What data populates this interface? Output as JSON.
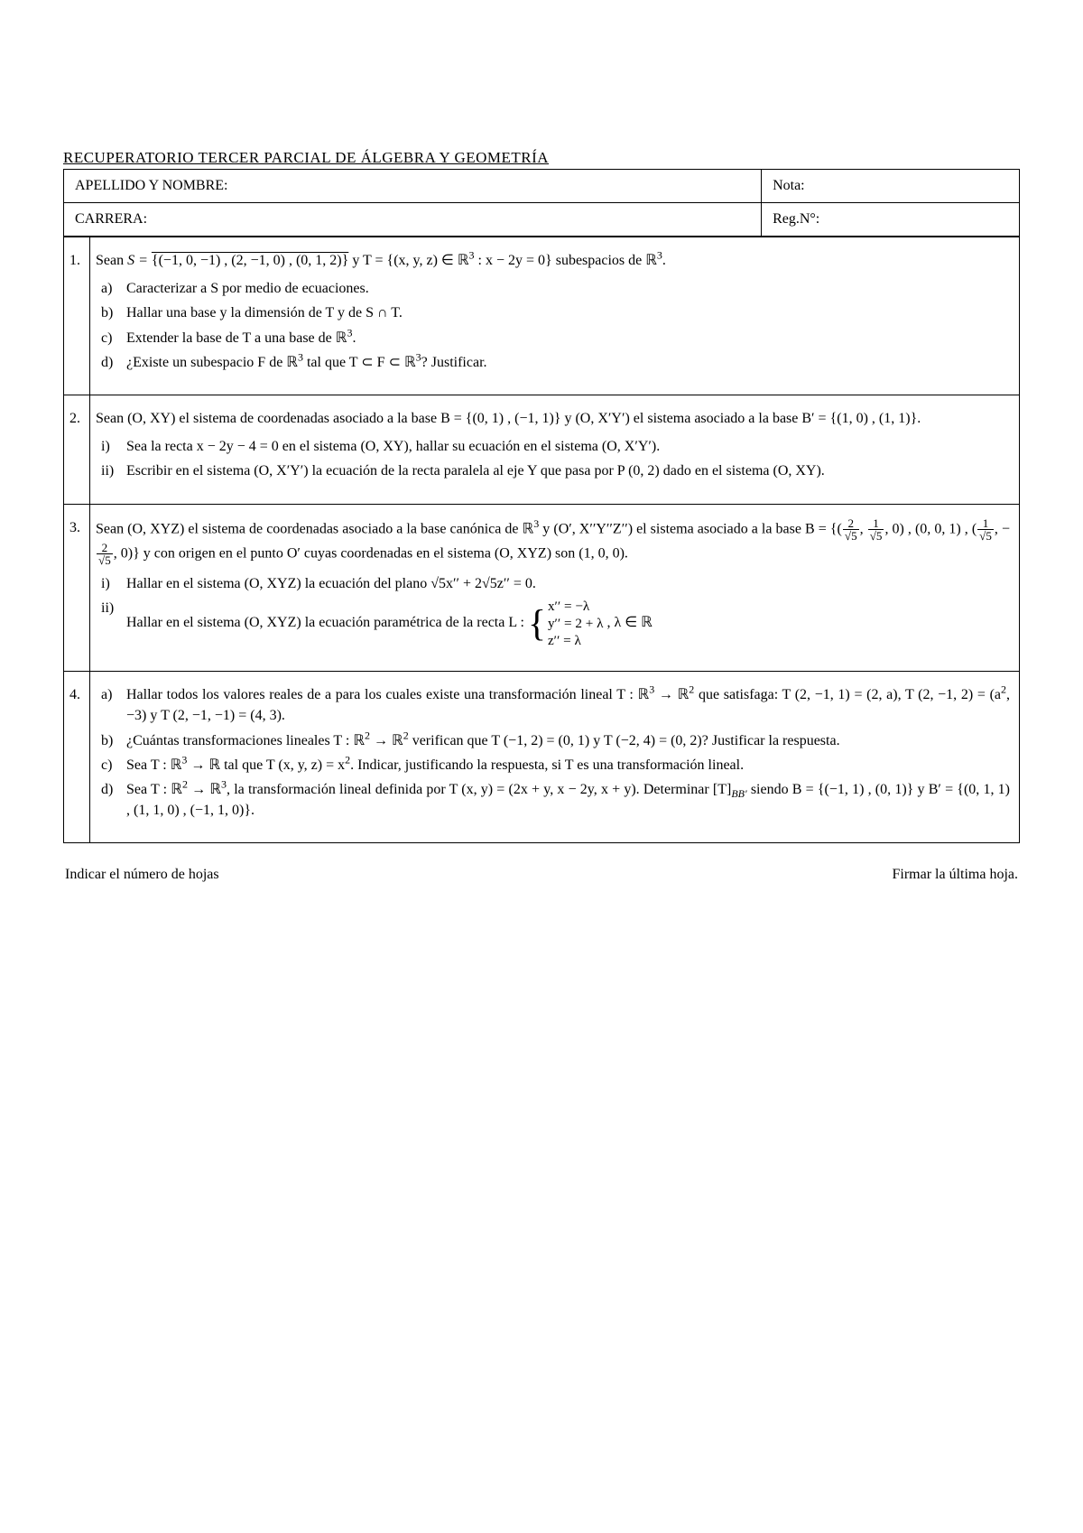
{
  "title": "RECUPERATORIO TERCER PARCIAL DE ÁLGEBRA Y GEOMETRÍA",
  "header": {
    "name_label": "APELLIDO Y NOMBRE:",
    "grade_label": "Nota:",
    "career_label": "CARRERA:",
    "reg_label": "Reg.N°:"
  },
  "q1": {
    "num": "1.",
    "intro_a": "Sean ",
    "intro_S": "S = ",
    "intro_Sspan": "{(−1, 0, −1) , (2, −1, 0) , (0, 1, 2)}",
    "intro_b": " y T = {(x, y, z) ∈ ℝ",
    "intro_c": " : x − 2y = 0} subespacios de ℝ",
    "intro_d": ".",
    "a_lab": "a)",
    "a": "Caracterizar a S por medio de ecuaciones.",
    "b_lab": "b)",
    "b": "Hallar una base y la dimensión de T y de S ∩ T.",
    "c_lab": "c)",
    "c_a": "Extender la base de T a una base de ℝ",
    "c_b": ".",
    "d_lab": "d)",
    "d_a": "¿Existe un subespacio F de ℝ",
    "d_b": " tal que T ⊂ F ⊂ ℝ",
    "d_c": "? Justificar."
  },
  "q2": {
    "num": "2.",
    "intro_a": "Sean (O, XY) el sistema de coordenadas asociado a la base B = {(0, 1) , (−1, 1)} y (O, X′Y′) el sistema asociado a la base B′ = {(1, 0) , (1, 1)}.",
    "i_lab": "i)",
    "i": "Sea la recta x − 2y − 4 = 0 en el sistema (O, XY), hallar su ecuación en el sistema (O, X′Y′).",
    "ii_lab": "ii)",
    "ii": "Escribir en el sistema (O, X′Y′) la ecuación de la recta paralela al eje Y que pasa por P (0, 2) dado en el sistema (O, XY)."
  },
  "q3": {
    "num": "3.",
    "intro_a": "Sean (O, XYZ) el sistema de coordenadas asociado a la base canónica de ℝ",
    "intro_b": " y (O′, X′′Y′′Z′′) el siste­ma asociado a la base B = ",
    "intro_c": " y con origen en el punto O′ cuyas coordenadas en el sistema (O, XYZ) son (1, 0, 0).",
    "basis_open": "{(",
    "f1n": "2",
    "f1d": "√5",
    "f2n": "1",
    "f2d": "√5",
    "basis_mid1": ", 0) , (0, 0, 1) , (",
    "f3n": "1",
    "f3d": "√5",
    "f4n": "2",
    "f4d": "√5",
    "basis_close": ", 0)}",
    "i_lab": "i)",
    "i_a": "Hallar en el sistema (O, XYZ) la ecuación del plano ",
    "i_b": "x′′ + 2",
    "i_c": "z′′ = 0.",
    "sqrt5a": "√5",
    "sqrt5b": "√5",
    "ii_lab": "ii)",
    "ii_a": "Hallar en el sistema (O, XYZ) la ecuación paramétrica de la recta L : ",
    "sys1": "x′′ = −λ",
    "sys2": "y′′ = 2 + λ",
    "sys3": "z′′ = λ",
    "ii_b": " , λ ∈ ℝ"
  },
  "q4": {
    "num": "4.",
    "a_lab": "a)",
    "a1": "Hallar todos los valores reales de a para los cuales existe una transformación lineal T : ℝ",
    "a2": " → ℝ",
    "a3": " que satisfaga: T (2, −1, 1) = (2, a), T (2, −1, 2) = (a",
    "a4": ", −3) y T (2, −1, −1) = (4, 3).",
    "b_lab": "b)",
    "b1": "¿Cuántas transformaciones lineales T : ℝ",
    "b2": " → ℝ",
    "b3": " verifican que T (−1, 2) = (0, 1) y T (−2, 4) = (0, 2)? Justificar la respuesta.",
    "c_lab": "c)",
    "c1": "Sea T : ℝ",
    "c2": " → ℝ tal que T (x, y, z) = x",
    "c3": ". Indicar, justificando la respuesta, si T es una transformación lineal.",
    "d_lab": "d)",
    "d1": "Sea T : ℝ",
    "d2": " → ℝ",
    "d3": ", la transformación lineal definida por T (x, y) = (2x + y, x − 2y, x + y). Determinar [T]",
    "d4": " siendo B = {(−1, 1) , (0, 1)} y B′ = {(0, 1, 1) , (1, 1, 0) , (−1, 1, 0)}."
  },
  "footer": {
    "left": "Indicar el número de hojas",
    "right": "Firmar la última hoja."
  }
}
